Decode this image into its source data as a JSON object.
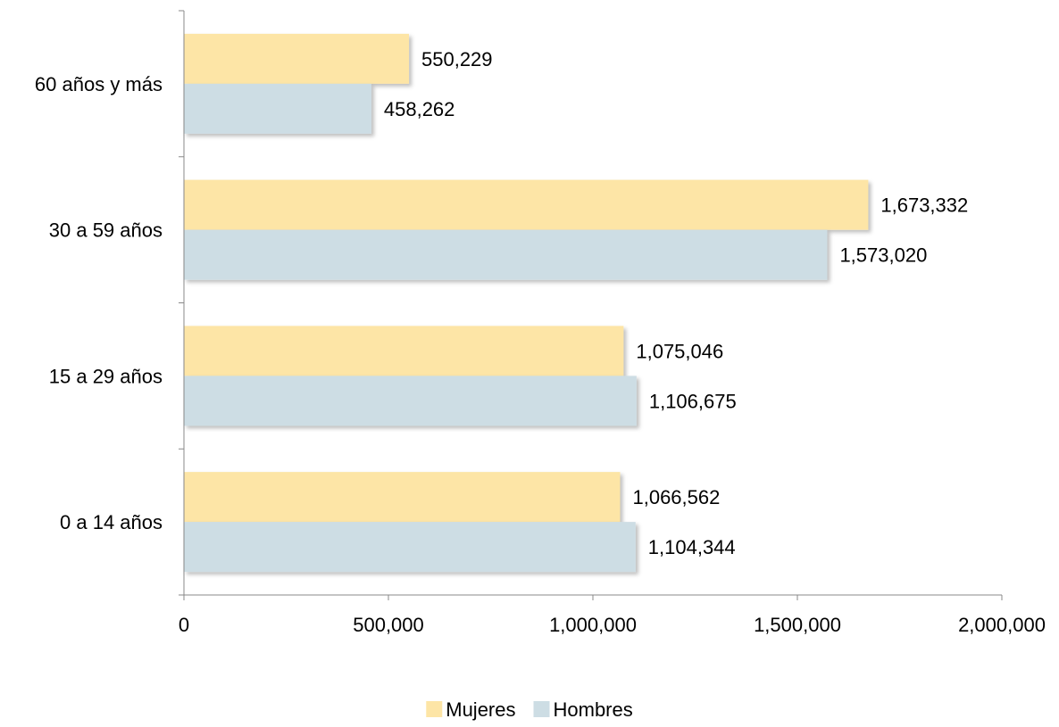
{
  "chart_data": {
    "type": "bar",
    "orientation": "horizontal",
    "categories": [
      "0 a 14 años",
      "15 a 29 años",
      "30 a 59 años",
      "60 años y más"
    ],
    "series": [
      {
        "name": "Mujeres",
        "values": [
          1066562,
          1075046,
          1673332,
          550229
        ],
        "color": "#fde5a6"
      },
      {
        "name": "Hombres",
        "values": [
          1104344,
          1106675,
          1573020,
          458262
        ],
        "color": "#cddde4"
      }
    ],
    "data_labels": {
      "Mujeres": [
        "1,066,562",
        "1,075,046",
        "1,673,332",
        "550,229"
      ],
      "Hombres": [
        "1,104,344",
        "1,106,675",
        "1,573,020",
        "458,262"
      ]
    },
    "xlim": [
      0,
      2000000
    ],
    "xticks": [
      0,
      500000,
      1000000,
      1500000,
      2000000
    ],
    "xtick_labels": [
      "0",
      "500,000",
      "1,000,000",
      "1,500,000",
      "2,000,000"
    ],
    "grid": false,
    "legend_position": "bottom",
    "axis_color": "#888888"
  }
}
